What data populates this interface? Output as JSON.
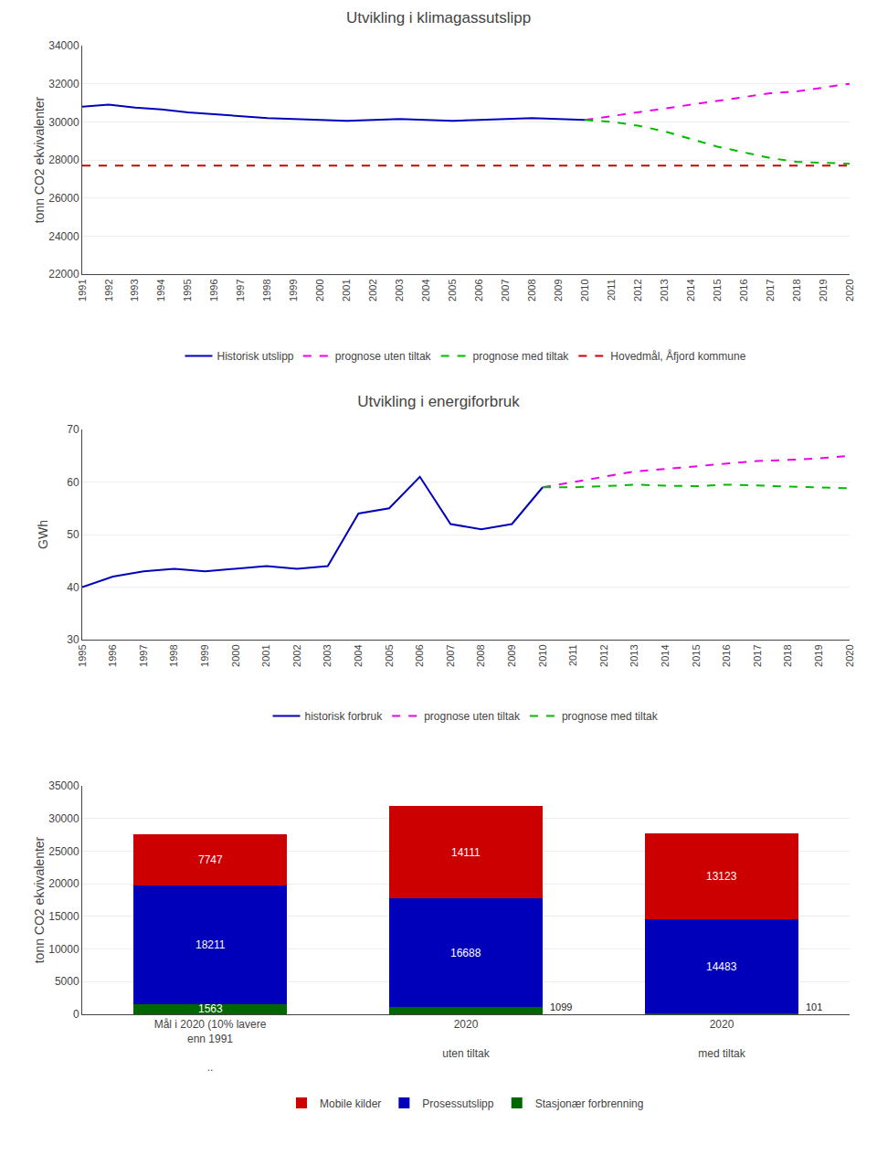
{
  "chart_data": [
    {
      "type": "line",
      "title": "Utvikling i klimagassutslipp",
      "ylabel": "tonn CO2 ekvivalenter",
      "x": [
        1991,
        1992,
        1993,
        1994,
        1995,
        1996,
        1997,
        1998,
        1999,
        2000,
        2001,
        2002,
        2003,
        2004,
        2005,
        2006,
        2007,
        2008,
        2009,
        2010,
        2011,
        2012,
        2013,
        2014,
        2015,
        2016,
        2017,
        2018,
        2019,
        2020
      ],
      "xlim": [
        1991,
        2020
      ],
      "xticks": [
        1991,
        1992,
        1993,
        1994,
        1995,
        1996,
        1997,
        1998,
        1999,
        2000,
        2001,
        2002,
        2003,
        2004,
        2005,
        2006,
        2007,
        2008,
        2009,
        2010,
        2011,
        2012,
        2013,
        2014,
        2015,
        2016,
        2017,
        2018,
        2019,
        2020
      ],
      "ylim": [
        22000,
        34000
      ],
      "yticks": [
        22000,
        24000,
        26000,
        28000,
        30000,
        32000,
        34000
      ],
      "grid": true,
      "legend": "bottom",
      "series": [
        {
          "name": "Historisk utslipp",
          "color": "#0000bb",
          "line_style": "solid",
          "values": [
            30800,
            30900,
            30750,
            30650,
            30500,
            30400,
            30300,
            30200,
            30150,
            30100,
            30050,
            30100,
            30150,
            30100,
            30050,
            30100,
            30150,
            30200,
            30150,
            30100,
            null,
            null,
            null,
            null,
            null,
            null,
            null,
            null,
            null,
            null
          ]
        },
        {
          "name": "prognose uten tiltak",
          "color": "#ee00ee",
          "line_style": "dashed",
          "values": [
            null,
            null,
            null,
            null,
            null,
            null,
            null,
            null,
            null,
            null,
            null,
            null,
            null,
            null,
            null,
            null,
            null,
            null,
            null,
            30100,
            30300,
            30500,
            30700,
            30900,
            31100,
            31300,
            31500,
            31600,
            31800,
            32000
          ]
        },
        {
          "name": "prognose med tiltak",
          "color": "#00bb00",
          "line_style": "dashed",
          "values": [
            null,
            null,
            null,
            null,
            null,
            null,
            null,
            null,
            null,
            null,
            null,
            null,
            null,
            null,
            null,
            null,
            null,
            null,
            null,
            30100,
            30000,
            29800,
            29500,
            29100,
            28700,
            28400,
            28100,
            27900,
            27850,
            27800
          ]
        },
        {
          "name": "Hovedmål, Åfjord kommune",
          "color": "#cc0000",
          "line_style": "dashed",
          "values": [
            27700,
            27700,
            27700,
            27700,
            27700,
            27700,
            27700,
            27700,
            27700,
            27700,
            27700,
            27700,
            27700,
            27700,
            27700,
            27700,
            27700,
            27700,
            27700,
            27700,
            27700,
            27700,
            27700,
            27700,
            27700,
            27700,
            27700,
            27700,
            27700,
            27700
          ]
        }
      ]
    },
    {
      "type": "line",
      "title": "Utvikling i energiforbruk",
      "ylabel": "GWh",
      "x": [
        1995,
        1996,
        1997,
        1998,
        1999,
        2000,
        2001,
        2002,
        2003,
        2004,
        2005,
        2006,
        2007,
        2008,
        2009,
        2010,
        2011,
        2012,
        2013,
        2014,
        2015,
        2016,
        2017,
        2018,
        2019,
        2020
      ],
      "xlim": [
        1995,
        2020
      ],
      "xticks": [
        1995,
        1996,
        1997,
        1998,
        1999,
        2000,
        2001,
        2002,
        2003,
        2004,
        2005,
        2006,
        2007,
        2008,
        2009,
        2010,
        2011,
        2012,
        2013,
        2014,
        2015,
        2016,
        2017,
        2018,
        2019,
        2020
      ],
      "ylim": [
        30,
        70
      ],
      "yticks": [
        30,
        40,
        50,
        60,
        70
      ],
      "grid": true,
      "legend": "bottom",
      "series": [
        {
          "name": "historisk forbruk",
          "color": "#0000bb",
          "line_style": "solid",
          "values": [
            40,
            42,
            43,
            43.5,
            43,
            43.5,
            44,
            43.5,
            44,
            54,
            55,
            61,
            52,
            51,
            52,
            59,
            null,
            null,
            null,
            null,
            null,
            null,
            null,
            null,
            null,
            null
          ]
        },
        {
          "name": "prognose uten tiltak",
          "color": "#ee00ee",
          "line_style": "dashed",
          "values": [
            null,
            null,
            null,
            null,
            null,
            null,
            null,
            null,
            null,
            null,
            null,
            null,
            null,
            null,
            null,
            59,
            60,
            61,
            62,
            62.5,
            63,
            63.5,
            64,
            64.2,
            64.5,
            65
          ]
        },
        {
          "name": "prognose med tiltak",
          "color": "#00bb00",
          "line_style": "dashed",
          "values": [
            null,
            null,
            null,
            null,
            null,
            null,
            null,
            null,
            null,
            null,
            null,
            null,
            null,
            null,
            null,
            59,
            59,
            59.2,
            59.5,
            59.3,
            59.2,
            59.5,
            59.3,
            59.1,
            59.0,
            58.8
          ]
        }
      ]
    },
    {
      "type": "bar",
      "stacked": true,
      "data_labels": true,
      "ylabel": "tonn CO2 ekvivalenter",
      "categories": [
        "Mål i 2020 (10% lavere\nenn 1991\n\n..",
        "2020\n\nuten tiltak",
        "2020\n\nmed tiltak"
      ],
      "ylim": [
        0,
        35000
      ],
      "yticks": [
        0,
        5000,
        10000,
        15000,
        20000,
        25000,
        30000,
        35000
      ],
      "grid": true,
      "legend": "bottom",
      "series": [
        {
          "name": "Stasjonær forbrenning",
          "color": "#006600",
          "values": [
            1563,
            1099,
            101
          ]
        },
        {
          "name": "Prosessutslipp",
          "color": "#0000bb",
          "values": [
            18211,
            16688,
            14483
          ]
        },
        {
          "name": "Mobile kilder",
          "color": "#cc0000",
          "values": [
            7747,
            14111,
            13123
          ]
        }
      ]
    }
  ]
}
